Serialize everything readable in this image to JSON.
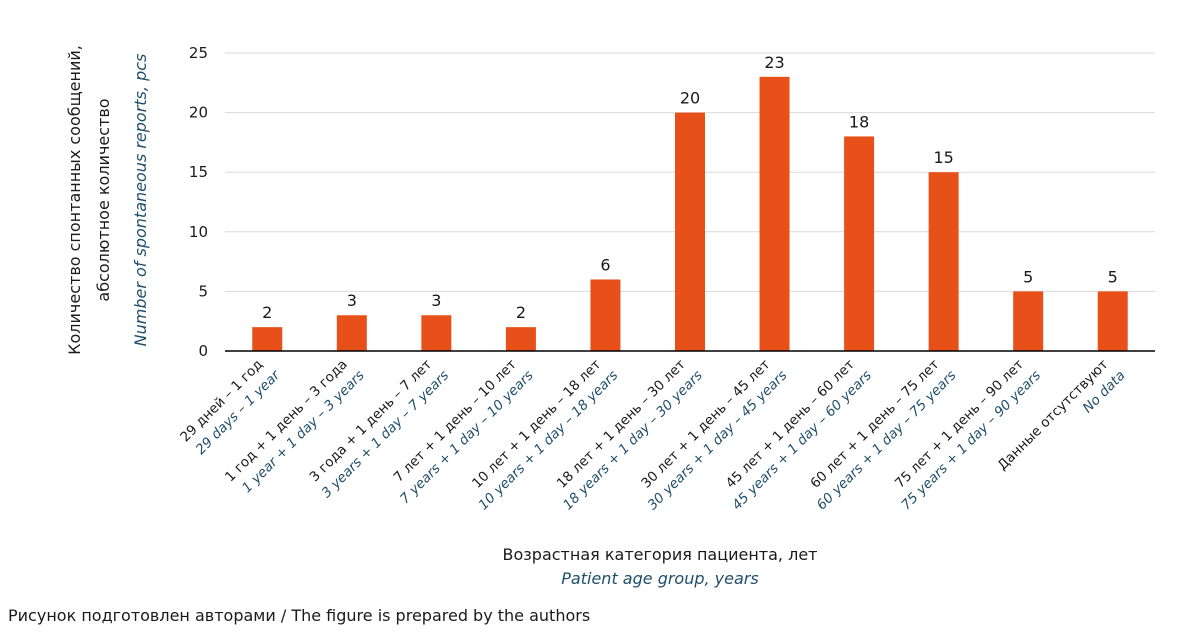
{
  "chart_data": {
    "type": "bar",
    "categories": [
      {
        "ru": "29 дней – 1 год",
        "en": "29 days – 1 year"
      },
      {
        "ru": "1 год + 1 день – 3 года",
        "en": "1 year + 1 day – 3 years"
      },
      {
        "ru": "3 года + 1 день – 7 лет",
        "en": "3 years + 1 day – 7 years"
      },
      {
        "ru": "7 лет + 1 день – 10 лет",
        "en": "7 years + 1 day – 10 years"
      },
      {
        "ru": "10 лет + 1 день – 18 лет",
        "en": "10 years + 1 day – 18 years"
      },
      {
        "ru": "18 лет + 1 день – 30 лет",
        "en": "18 years + 1 day – 30 years"
      },
      {
        "ru": "30 лет + 1 день – 45 лет",
        "en": "30 years + 1 day – 45 years"
      },
      {
        "ru": "45 лет + 1 день – 60 лет",
        "en": "45 years + 1 day – 60 years"
      },
      {
        "ru": "60 лет + 1 день – 75 лет",
        "en": "60 years + 1 day – 75 years"
      },
      {
        "ru": "75 лет + 1 день – 90 лет",
        "en": "75 years + 1 day – 90 years"
      },
      {
        "ru": "Данные отсутствуют",
        "en": "No data"
      }
    ],
    "values": [
      2,
      3,
      3,
      2,
      6,
      20,
      23,
      18,
      15,
      5,
      5
    ],
    "data_labels": [
      "2",
      "3",
      "3",
      "2",
      "6",
      "20",
      "23",
      "18",
      "15",
      "5",
      "5"
    ],
    "ylim": [
      0,
      25
    ],
    "yticks": [
      0,
      5,
      10,
      15,
      20,
      25
    ],
    "ytick_labels": [
      "0",
      "5",
      "10",
      "15",
      "20",
      "25"
    ],
    "ylabel_ru_line1": "Количество спонтанных сообщений,",
    "ylabel_ru_line2": "абсолютное количество",
    "ylabel_en": "Number of spontaneous reports, pcs",
    "xlabel_ru": "Возрастная категория пациента, лет",
    "xlabel_en": "Patient age group, years",
    "grid": true,
    "legend": "none",
    "colors": {
      "bar": "#e8501a",
      "grid": "#d9d9d9",
      "axis": "#000000",
      "text": "#1a1a1a",
      "english_text": "#1f4e6b"
    }
  },
  "caption": "Рисунок подготовлен авторами / The figure is prepared by the authors"
}
